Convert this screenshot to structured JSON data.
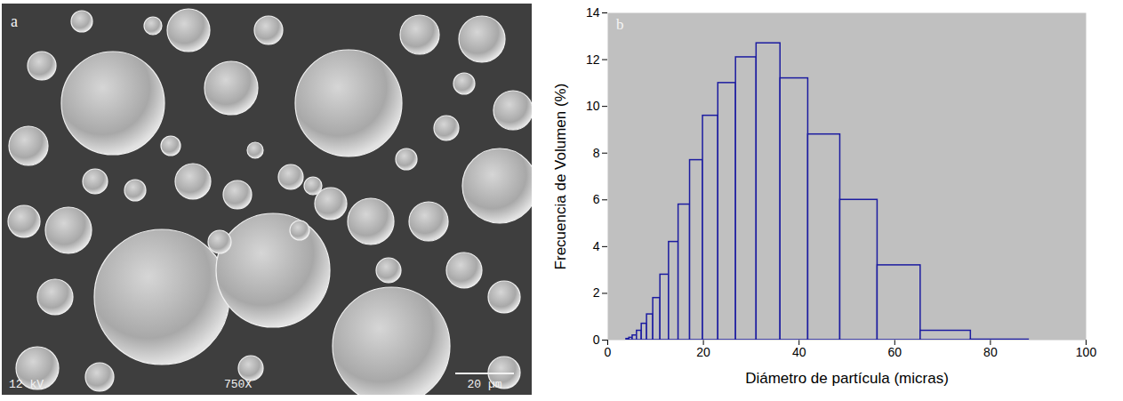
{
  "chart_data": {
    "type": "histogram",
    "panel_label": "b",
    "x_label": "Diámetro de partícula (micras)",
    "y_label": "Frecuencia de Volumen (%)",
    "bins": [
      3.9,
      4.5,
      5.2,
      6.1,
      7.1,
      8.2,
      9.5,
      11.0,
      12.8,
      14.8,
      17.2,
      19.9,
      23.1,
      26.8,
      31.1,
      36.1,
      41.9,
      48.6,
      56.4,
      65.4,
      75.9,
      88.0
    ],
    "values": [
      0.05,
      0.1,
      0.2,
      0.4,
      0.7,
      1.1,
      1.8,
      2.8,
      4.2,
      5.8,
      7.7,
      9.6,
      11.0,
      12.1,
      12.7,
      11.2,
      8.8,
      6.0,
      3.2,
      0.4,
      0.02
    ],
    "color": "#1c1ca0",
    "xlim": [
      0,
      100
    ],
    "xticks": [
      0,
      20,
      40,
      60,
      80,
      100
    ],
    "ylim": [
      0,
      14
    ],
    "yticks": [
      0,
      2,
      4,
      6,
      8,
      10,
      12,
      14
    ],
    "grid": false
  },
  "micrograph": {
    "panel_label": "a",
    "accelerating_voltage": "12 kV",
    "magnification": "750X",
    "scale_bar": "20 µm"
  }
}
